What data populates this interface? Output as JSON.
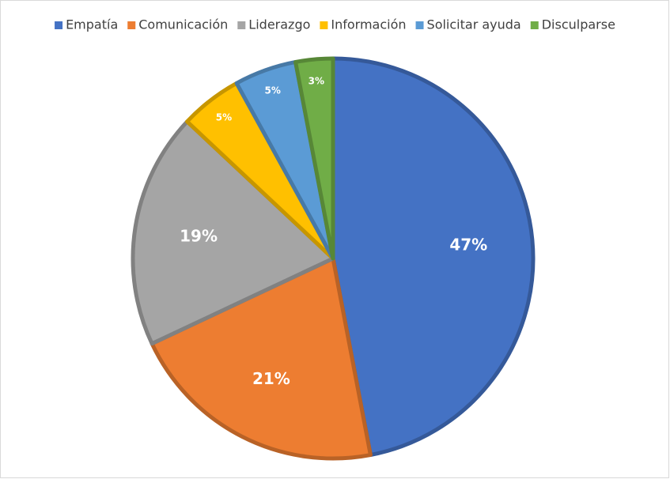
{
  "chart_data": {
    "type": "pie",
    "categories": [
      "Empatía",
      "Comunicación",
      "Liderazgo",
      "Información",
      "Solicitar ayuda",
      "Disculparse"
    ],
    "values": [
      47,
      21,
      19,
      5,
      5,
      3
    ],
    "value_labels": [
      "47%",
      "21%",
      "19%",
      "5%",
      "5%",
      "3%"
    ],
    "colors": [
      "#4472c4",
      "#ed7d31",
      "#a5a5a5",
      "#ffc000",
      "#5b9bd5",
      "#70ad47"
    ],
    "legend": "top"
  }
}
